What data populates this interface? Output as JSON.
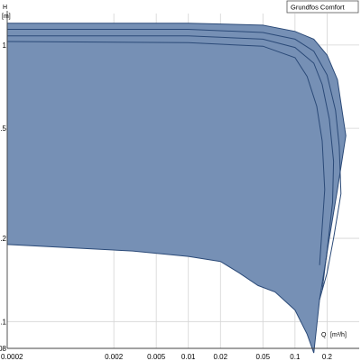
{
  "chart_data": {
    "type": "area",
    "title": "",
    "legend": {
      "label": "Grundfos Comfort",
      "placement": "top-right"
    },
    "x_axis": {
      "label": "Q",
      "unit": "[m³/h]",
      "scale": "log",
      "range": [
        0.0002,
        0.4
      ],
      "ticks": [
        0.0002,
        0.002,
        0.005,
        0.01,
        0.02,
        0.05,
        0.1,
        0.2
      ],
      "tick_labels": [
        "0.0002",
        "0.002",
        "0.005",
        "0.01",
        "0.02",
        "0.05",
        "0.1",
        "0.2"
      ]
    },
    "y_axis": {
      "label": "H",
      "unit": "[m]",
      "scale": "log",
      "range": [
        0.08,
        1.3
      ],
      "ticks": [
        0.08,
        0.1,
        0.2,
        0.5,
        1
      ],
      "tick_labels": [
        "0.08",
        "0.1",
        "0.2",
        "0.5",
        "1"
      ]
    },
    "grid": true,
    "fill_color": "#7690b5",
    "line_color": "#2b4a78",
    "region": {
      "upper": [
        [
          0.0002,
          1.2
        ],
        [
          0.01,
          1.2
        ],
        [
          0.05,
          1.18
        ],
        [
          0.1,
          1.12
        ],
        [
          0.15,
          1.05
        ],
        [
          0.2,
          0.92
        ],
        [
          0.25,
          0.75
        ],
        [
          0.3,
          0.47
        ]
      ],
      "lower": [
        [
          0.3,
          0.47
        ],
        [
          0.25,
          0.3
        ],
        [
          0.21,
          0.2
        ],
        [
          0.17,
          0.12
        ],
        [
          0.15,
          0.077
        ],
        [
          0.13,
          0.09
        ],
        [
          0.1,
          0.11
        ],
        [
          0.065,
          0.128
        ],
        [
          0.045,
          0.135
        ],
        [
          0.03,
          0.15
        ],
        [
          0.02,
          0.165
        ],
        [
          0.01,
          0.172
        ],
        [
          0.003,
          0.18
        ],
        [
          0.0002,
          0.19
        ]
      ]
    },
    "series": [
      {
        "values": [
          [
            0.0002,
            1.14
          ],
          [
            0.01,
            1.14
          ],
          [
            0.05,
            1.11
          ],
          [
            0.1,
            1.05
          ],
          [
            0.15,
            0.95
          ],
          [
            0.2,
            0.78
          ],
          [
            0.24,
            0.58
          ],
          [
            0.26,
            0.43
          ],
          [
            0.27,
            0.29
          ],
          [
            0.23,
            0.2
          ],
          [
            0.2,
            0.15
          ],
          [
            0.17,
            0.12
          ]
        ]
      },
      {
        "values": [
          [
            0.0002,
            1.08
          ],
          [
            0.01,
            1.08
          ],
          [
            0.05,
            1.05
          ],
          [
            0.1,
            0.98
          ],
          [
            0.15,
            0.86
          ],
          [
            0.18,
            0.72
          ],
          [
            0.21,
            0.54
          ],
          [
            0.23,
            0.38
          ],
          [
            0.225,
            0.27
          ],
          [
            0.2,
            0.18
          ],
          [
            0.18,
            0.13
          ]
        ]
      },
      {
        "values": [
          [
            0.0002,
            1.03
          ],
          [
            0.01,
            1.02
          ],
          [
            0.05,
            0.99
          ],
          [
            0.1,
            0.9
          ],
          [
            0.13,
            0.77
          ],
          [
            0.16,
            0.6
          ],
          [
            0.18,
            0.45
          ],
          [
            0.19,
            0.3
          ],
          [
            0.18,
            0.22
          ],
          [
            0.17,
            0.16
          ]
        ]
      }
    ]
  }
}
